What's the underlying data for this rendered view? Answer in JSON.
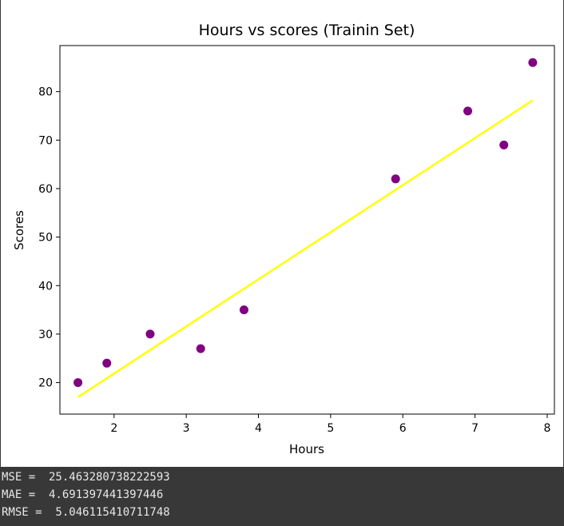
{
  "chart_data": {
    "type": "scatter",
    "title": "Hours vs scores (Trainin Set)",
    "xlabel": "Hours",
    "ylabel": "Scores",
    "xlim": [
      1.25,
      8.1
    ],
    "ylim": [
      13.5,
      89.5
    ],
    "xticks": [
      2,
      3,
      4,
      5,
      6,
      7,
      8
    ],
    "yticks": [
      20,
      30,
      40,
      50,
      60,
      70,
      80
    ],
    "series": [
      {
        "kind": "scatter",
        "color": "#800080",
        "points": [
          {
            "x": 1.5,
            "y": 20
          },
          {
            "x": 1.9,
            "y": 24
          },
          {
            "x": 2.5,
            "y": 30
          },
          {
            "x": 3.2,
            "y": 27
          },
          {
            "x": 3.8,
            "y": 35
          },
          {
            "x": 5.9,
            "y": 62
          },
          {
            "x": 6.9,
            "y": 76
          },
          {
            "x": 7.4,
            "y": 69
          },
          {
            "x": 7.8,
            "y": 86
          }
        ]
      },
      {
        "kind": "line",
        "color": "#ffff00",
        "points": [
          {
            "x": 1.5,
            "y": 17
          },
          {
            "x": 7.8,
            "y": 78.2
          }
        ]
      }
    ],
    "grid": false
  },
  "output": {
    "lines": [
      "MSE =  25.463280738222593",
      "MAE =  4.691397441397446",
      "RMSE =  5.046115410711748"
    ]
  }
}
